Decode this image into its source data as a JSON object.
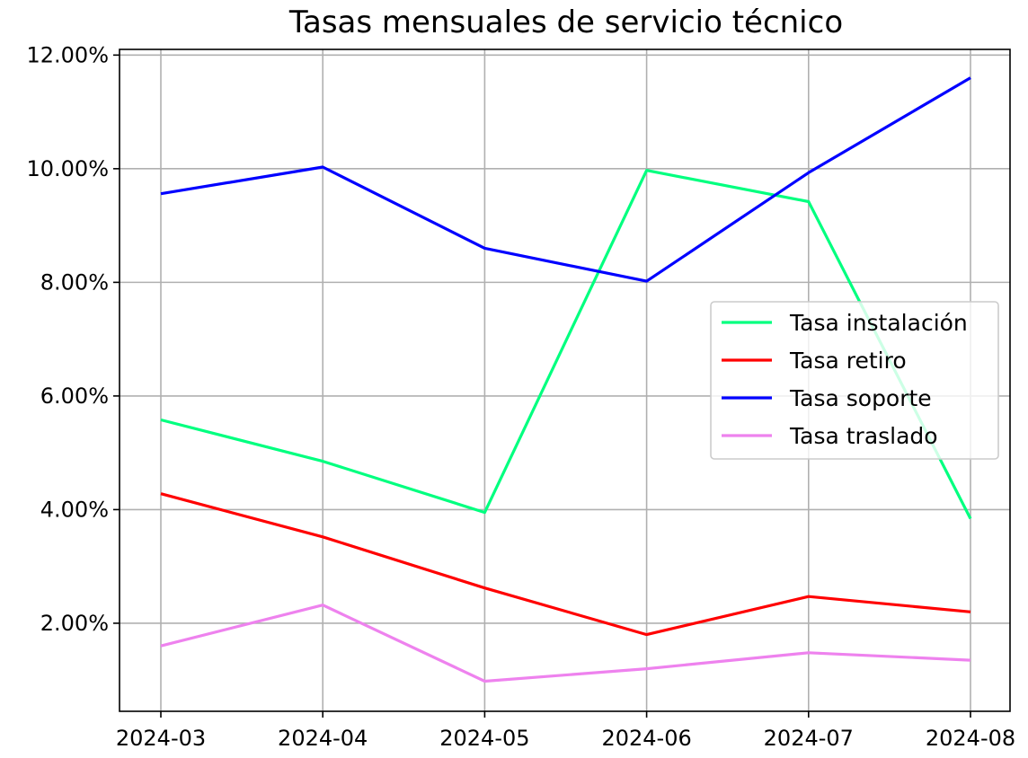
{
  "chart_data": {
    "type": "line",
    "title": "Tasas mensuales de servicio técnico",
    "xlabel": "",
    "ylabel": "",
    "categories": [
      "2024-03",
      "2024-04",
      "2024-05",
      "2024-06",
      "2024-07",
      "2024-08"
    ],
    "ylim": [
      0.45,
      12.1
    ],
    "yticks": [
      2,
      4,
      6,
      8,
      10,
      12
    ],
    "ytick_labels": [
      "2.00%",
      "4.00%",
      "6.00%",
      "8.00%",
      "10.00%",
      "12.00%"
    ],
    "grid": true,
    "legend_position": "center-right",
    "series": [
      {
        "name": "Tasa instalación",
        "color": "#00ff7f",
        "values": [
          5.58,
          4.85,
          3.95,
          9.97,
          9.42,
          3.84
        ]
      },
      {
        "name": "Tasa retiro",
        "color": "#ff0000",
        "values": [
          4.28,
          3.52,
          2.62,
          1.8,
          2.47,
          2.2
        ]
      },
      {
        "name": "Tasa soporte",
        "color": "#0000ff",
        "values": [
          9.56,
          10.03,
          8.6,
          8.02,
          9.93,
          11.6
        ]
      },
      {
        "name": "Tasa traslado",
        "color": "#ee82ee",
        "values": [
          1.6,
          2.32,
          0.98,
          1.2,
          1.48,
          1.35
        ]
      }
    ]
  }
}
